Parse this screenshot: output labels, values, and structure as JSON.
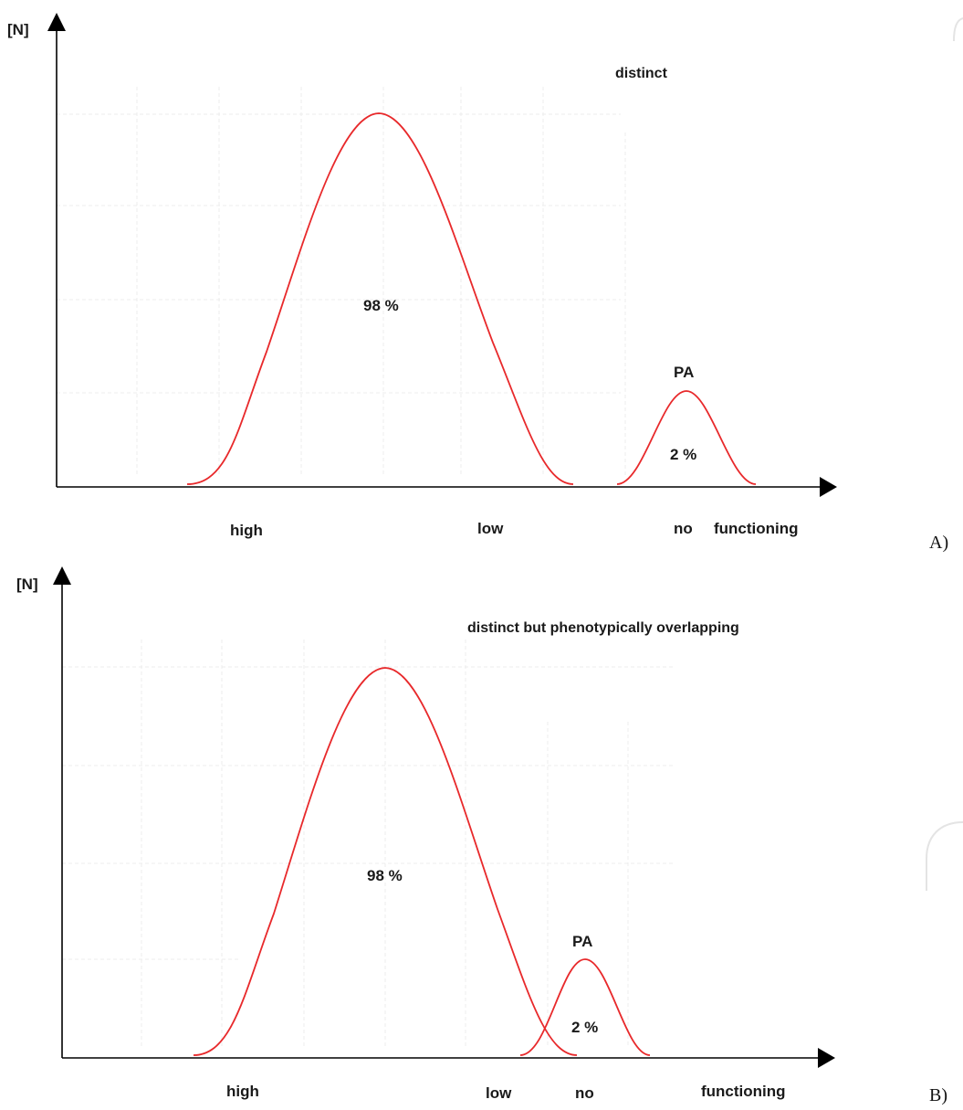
{
  "panels": [
    {
      "id": "A",
      "tag": "A)",
      "y_axis_label": "[N]",
      "title": "distinct",
      "main_label": "98 %",
      "small_title": "PA",
      "small_label": "2 %",
      "x_labels": {
        "high": "high",
        "low": "low",
        "no": "no",
        "functioning": "functioning"
      },
      "curves": [
        {
          "name": "",
          "peak_share_pct": 98,
          "peak_height": 1.0
        },
        {
          "name": "PA",
          "peak_share_pct": 2,
          "peak_height": 0.26
        }
      ],
      "overlapping": false
    },
    {
      "id": "B",
      "tag": "B)",
      "y_axis_label": "[N]",
      "title": "distinct but phenotypically overlapping",
      "main_label": "98 %",
      "small_title": "PA",
      "small_label": "2 %",
      "x_labels": {
        "high": "high",
        "low": "low",
        "no": "no",
        "functioning": "functioning"
      },
      "curves": [
        {
          "name": "",
          "peak_share_pct": 98,
          "peak_height": 1.0
        },
        {
          "name": "PA",
          "peak_share_pct": 2,
          "peak_height": 0.26
        }
      ],
      "overlapping": true
    }
  ],
  "colors": {
    "curve": "#e8292b",
    "axis": "#000000",
    "grid": "#ececec"
  }
}
